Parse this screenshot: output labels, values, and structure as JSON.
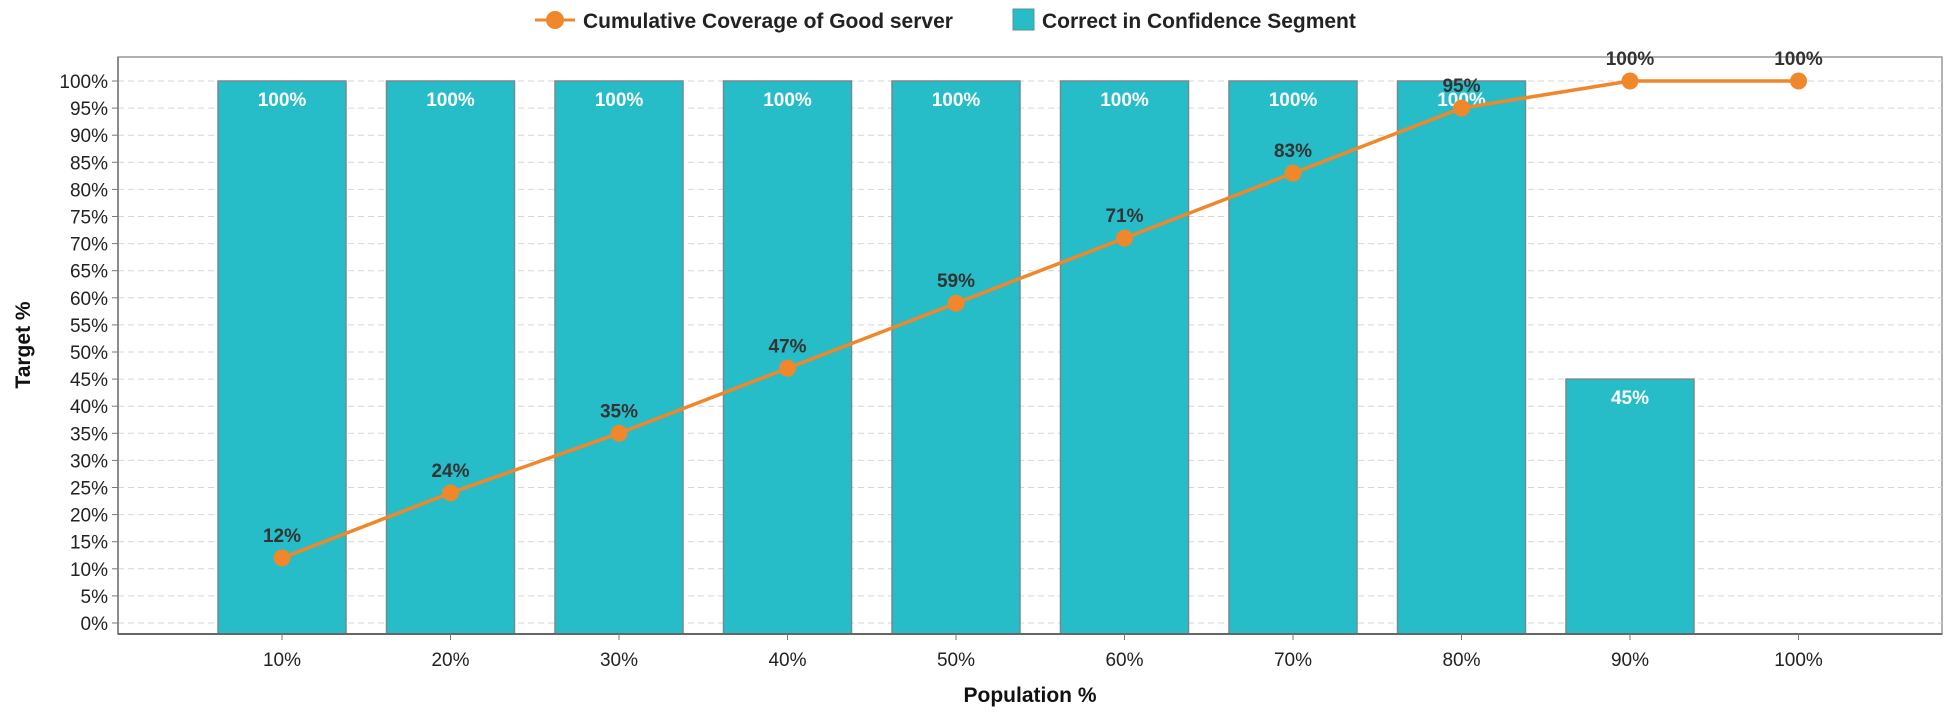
{
  "chart_data": {
    "type": "bar",
    "title": "",
    "xlabel": "Population %",
    "ylabel": "Target %",
    "ylim": [
      0,
      100
    ],
    "ytick_step": 5,
    "grid": true,
    "legend_position": "top-center",
    "categories": [
      "10%",
      "20%",
      "30%",
      "40%",
      "50%",
      "60%",
      "70%",
      "80%",
      "90%",
      "100%"
    ],
    "series": [
      {
        "name": "Correct in Confidence Segment",
        "type": "bar",
        "color": "#26bdc8",
        "values": [
          100,
          100,
          100,
          100,
          100,
          100,
          100,
          100,
          45,
          null
        ],
        "labels": [
          "100%",
          "100%",
          "100%",
          "100%",
          "100%",
          "100%",
          "100%",
          "100%",
          "45%",
          ""
        ]
      },
      {
        "name": "Cumulative Coverage of Good server",
        "type": "line",
        "color": "#f0872a",
        "values": [
          12,
          24,
          35,
          47,
          59,
          71,
          83,
          95,
          100,
          100
        ],
        "labels": [
          "12%",
          "24%",
          "35%",
          "47%",
          "59%",
          "71%",
          "83%",
          "95%",
          "100%",
          "100%"
        ]
      }
    ]
  }
}
